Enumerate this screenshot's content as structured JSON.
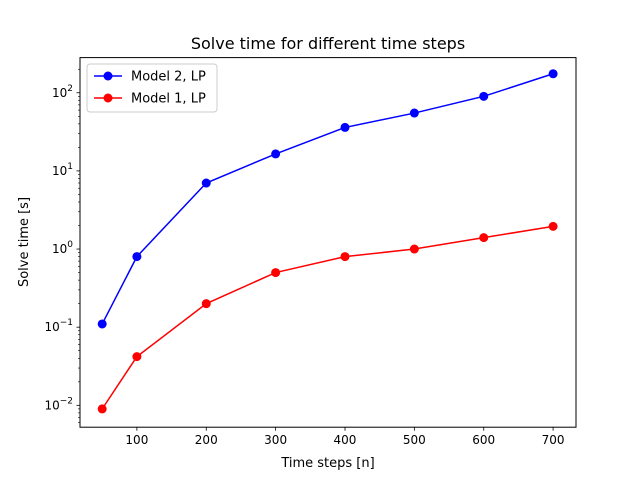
{
  "chart_data": {
    "type": "line",
    "title": "Solve time for different time steps",
    "xlabel": "Time steps [n]",
    "ylabel": "Solve time [s]",
    "xlim": [
      18,
      733
    ],
    "ylim_log10": [
      -2.28,
      2.45
    ],
    "yscale": "log",
    "grid": false,
    "legend_position": "top-left",
    "x_ticks": [
      100,
      200,
      300,
      400,
      500,
      600,
      700
    ],
    "y_ticks": [
      {
        "base": "10",
        "exponent": "−2",
        "log10": -2
      },
      {
        "base": "10",
        "exponent": "−1",
        "log10": -1
      },
      {
        "base": "10",
        "exponent": "0",
        "log10": 0
      },
      {
        "base": "10",
        "exponent": "1",
        "log10": 1
      },
      {
        "base": "10",
        "exponent": "2",
        "log10": 2
      }
    ],
    "series": [
      {
        "name": "Model 2, LP",
        "color": "#0000ff",
        "x": [
          50,
          100,
          200,
          300,
          400,
          500,
          600,
          700
        ],
        "y": [
          0.11,
          0.8,
          7.0,
          16.5,
          36,
          55,
          90,
          175
        ]
      },
      {
        "name": "Model 1, LP",
        "color": "#ff0000",
        "x": [
          50,
          100,
          200,
          300,
          400,
          500,
          600,
          700
        ],
        "y": [
          0.009,
          0.042,
          0.2,
          0.5,
          0.8,
          1.0,
          1.4,
          1.95
        ]
      }
    ]
  }
}
